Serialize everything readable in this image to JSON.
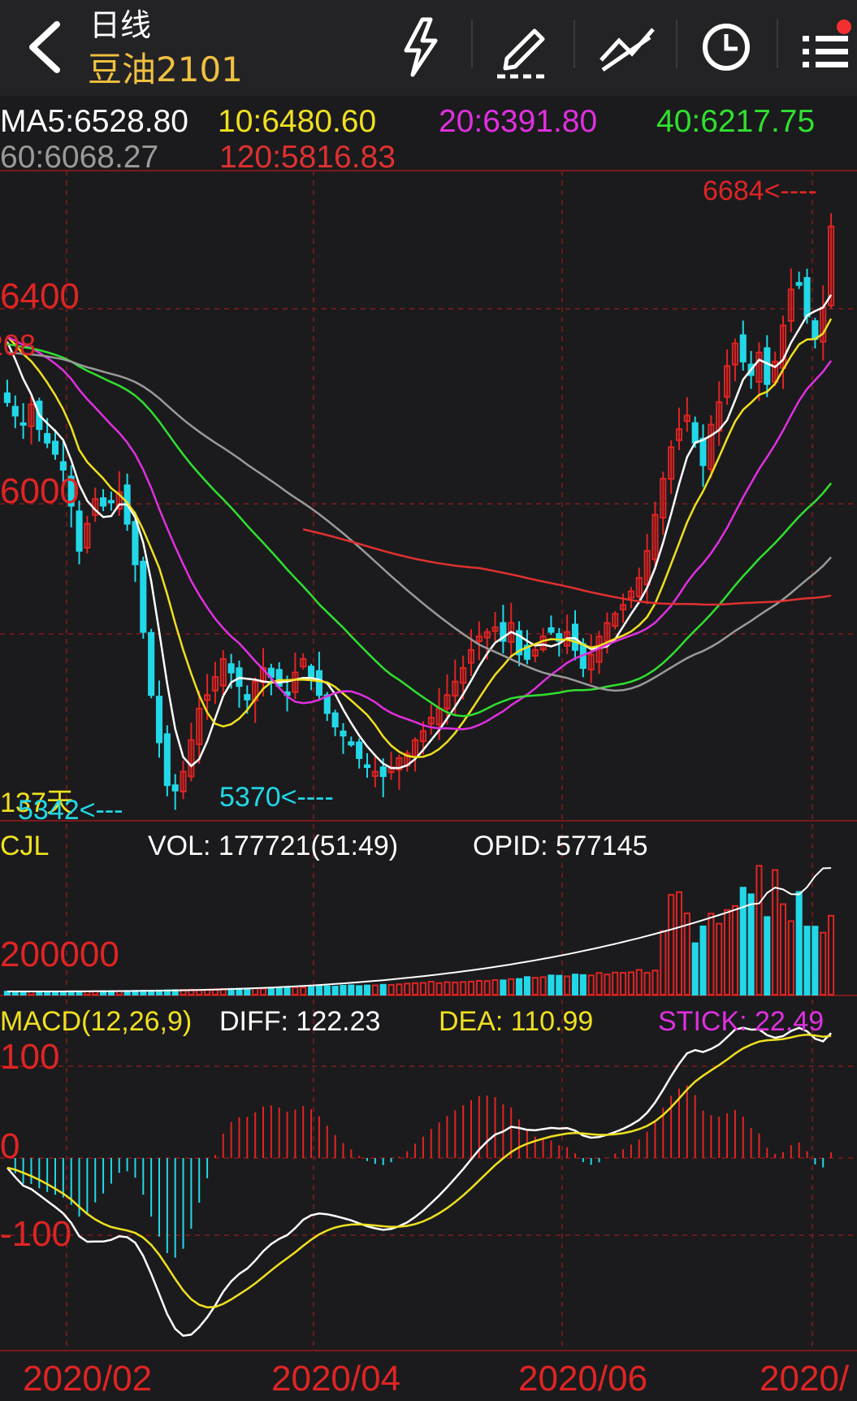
{
  "header": {
    "period": "日线",
    "contract": "豆油2101",
    "icons": [
      "back-chevron-icon",
      "lightning-icon",
      "pencil-icon",
      "drawing-tools-icon",
      "clock-icon",
      "menu-list-icon"
    ]
  },
  "ma_legend": [
    {
      "text": "MA5:6528.80",
      "color": "#ffffff"
    },
    {
      "text": "10:6480.60",
      "color": "#f0e020"
    },
    {
      "text": "20:6391.80",
      "color": "#e030e0"
    },
    {
      "text": "40:6217.75",
      "color": "#30e030"
    },
    {
      "text": "60:6068.27",
      "color": "#9a9a9a"
    },
    {
      "text": "120:5816.83",
      "color": "#e03030"
    }
  ],
  "price_axis_labels": [
    "6400",
    "6208",
    "6000",
    "137天"
  ],
  "price_annotations": {
    "high": "6684<----",
    "low1": "5342<---",
    "low2": "5370<----"
  },
  "volume_panel": {
    "name": "CJL",
    "vol": "VOL: 177721(51:49)",
    "opid": "OPID: 577145",
    "axis_label": "200000"
  },
  "macd_panel": {
    "name": "MACD(12,26,9)",
    "diff": "DIFF: 122.23",
    "dea": "DEA: 110.99",
    "stick": "STICK: 22.49",
    "axis_labels": [
      "100",
      "0",
      "-100"
    ]
  },
  "time_axis": [
    "2020/02",
    "2020/04",
    "2020/06",
    "2020/"
  ],
  "colors": {
    "up": "#e02424",
    "down": "#22d8e8",
    "bg": "#1b1b1d",
    "grid": "#6b1a1a"
  },
  "chart_data": {
    "type": "candlestick",
    "title": "豆油2101",
    "period": "日线",
    "ylim": [
      5290,
      6720
    ],
    "x_ticks": [
      "2020/02",
      "2020/04",
      "2020/06",
      "2020/"
    ],
    "high_marker": 6684,
    "low_markers": [
      5342,
      5370
    ],
    "ma_latest": {
      "MA5": 6528.8,
      "MA10": 6480.6,
      "MA20": 6391.8,
      "MA40": 6217.75,
      "MA60": 6068.27,
      "MA120": 5816.83
    },
    "closes": [
      6210,
      6180,
      6160,
      6205,
      6150,
      6120,
      6095,
      6060,
      5980,
      5880,
      5940,
      5995,
      5980,
      5990,
      6010,
      5940,
      5850,
      5700,
      5560,
      5455,
      5360,
      5348,
      5390,
      5460,
      5530,
      5560,
      5600,
      5640,
      5610,
      5580,
      5550,
      5590,
      5620,
      5600,
      5580,
      5560,
      5610,
      5640,
      5600,
      5560,
      5520,
      5490,
      5470,
      5450,
      5420,
      5400,
      5390,
      5380,
      5400,
      5420,
      5430,
      5460,
      5480,
      5510,
      5530,
      5560,
      5590,
      5620,
      5660,
      5690,
      5700,
      5710,
      5680,
      5720,
      5650,
      5640,
      5660,
      5690,
      5700,
      5680,
      5700,
      5660,
      5620,
      5650,
      5690,
      5720,
      5740,
      5760,
      5790,
      5820,
      5880,
      5960,
      6040,
      6110,
      6150,
      6180,
      6120,
      6070,
      6160,
      6210,
      6290,
      6340,
      6300,
      6270,
      6320,
      6250,
      6300,
      6380,
      6460,
      6470,
      6400,
      6350,
      6420,
      6600
    ]
  }
}
